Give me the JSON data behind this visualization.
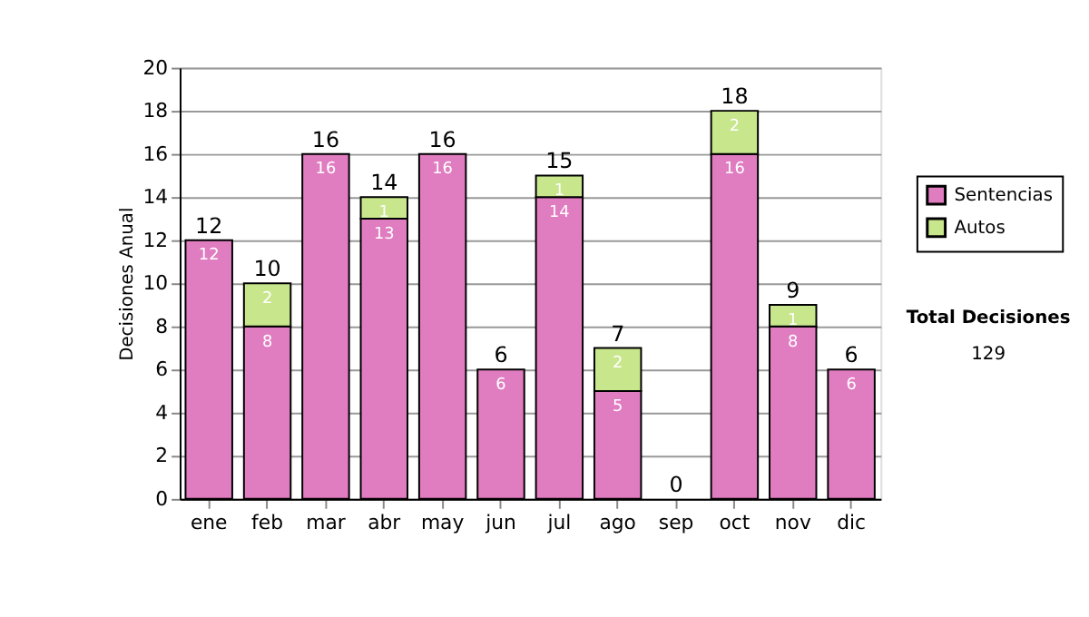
{
  "chart_data": {
    "type": "bar",
    "stacked": true,
    "ylabel": "Decisiones Anual",
    "categories": [
      "ene",
      "feb",
      "mar",
      "abr",
      "may",
      "jun",
      "jul",
      "ago",
      "sep",
      "oct",
      "nov",
      "dic"
    ],
    "series": [
      {
        "name": "Sentencias",
        "color": "#e07cc0",
        "values": [
          12,
          8,
          16,
          13,
          16,
          6,
          14,
          5,
          0,
          16,
          8,
          6
        ],
        "value_labels": [
          "12",
          "8",
          "16",
          "13",
          "16",
          "6",
          "14",
          "5",
          null,
          "16",
          "8",
          "6"
        ]
      },
      {
        "name": "Autos",
        "color": "#c8e68c",
        "values": [
          0,
          2,
          0,
          1,
          0,
          0,
          1,
          2,
          0,
          2,
          1,
          0
        ],
        "value_labels": [
          null,
          "2",
          null,
          "1",
          null,
          null,
          "1",
          "2",
          null,
          "2",
          "1",
          null
        ]
      }
    ],
    "totals": [
      "12",
      "10",
      "16",
      "14",
      "16",
      "6",
      "15",
      "7",
      "0",
      "18",
      "9",
      "6"
    ],
    "ylim": [
      0,
      20
    ],
    "yticks": [
      0,
      2,
      4,
      6,
      8,
      10,
      12,
      14,
      16,
      18,
      20
    ],
    "grid": "y",
    "legend": "right",
    "annotations": [
      "Total Decisiones",
      "129"
    ]
  }
}
